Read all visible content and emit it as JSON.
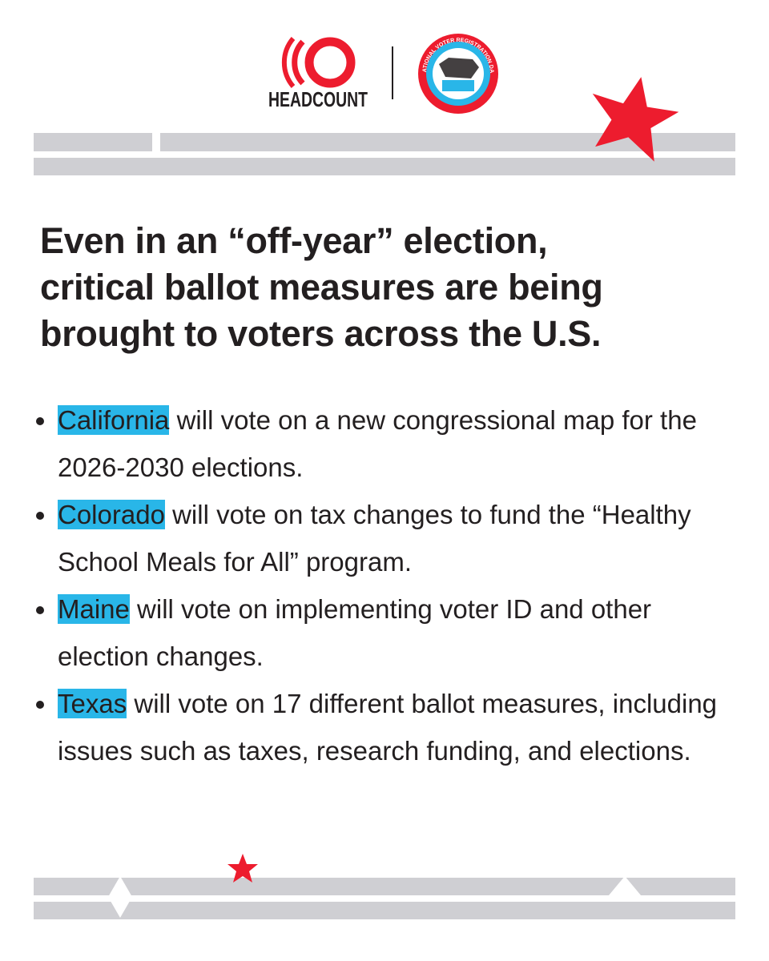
{
  "header": {
    "logo_text": "HEADCOUNT",
    "badge_text": "NATIONAL VOTER REGISTRATION DAY"
  },
  "title_lines": [
    "Even in an “off-year” election,",
    "critical ballot measures are being",
    "brought to voters across the U.S."
  ],
  "items": [
    {
      "state": "California",
      "text": " will vote on a new congressional map for the 2026-2030 elections."
    },
    {
      "state": "Colorado",
      "text": " will vote on tax changes to fund the “Healthy School Meals for All” program."
    },
    {
      "state": "Maine",
      "text": " will vote on implementing voter ID and other election changes."
    },
    {
      "state": "Texas",
      "text": " will vote on 17 different ballot measures, including issues such as taxes, research funding, and elections."
    }
  ]
}
